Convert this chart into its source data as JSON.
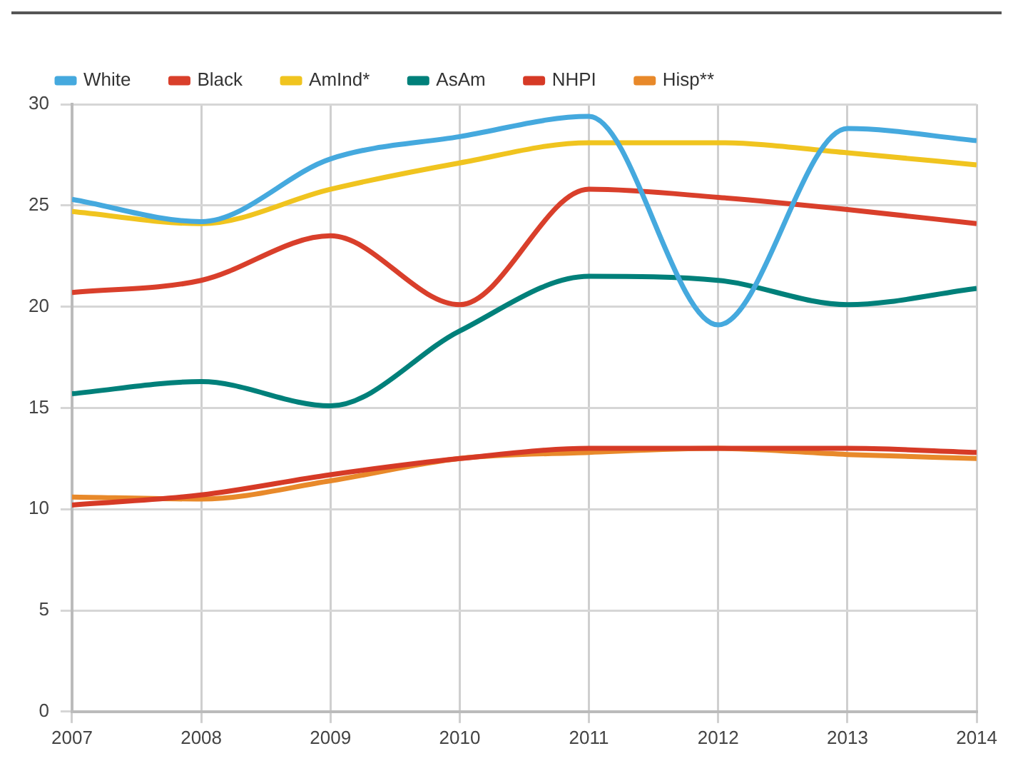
{
  "chart_data": {
    "type": "line",
    "x": [
      2007,
      2008,
      2009,
      2010,
      2011,
      2012,
      2013,
      2014
    ],
    "series": [
      {
        "name": "White",
        "color": "#45a9de",
        "values": [
          25.3,
          24.2,
          27.3,
          28.4,
          29.4,
          19.1,
          28.8,
          28.2
        ]
      },
      {
        "name": "Black",
        "color": "#d93f2b",
        "values": [
          20.7,
          21.3,
          23.5,
          20.1,
          25.8,
          25.4,
          24.8,
          24.1
        ]
      },
      {
        "name": "AmInd*",
        "color": "#f0c41f",
        "values": [
          24.7,
          24.1,
          25.8,
          27.1,
          28.1,
          28.1,
          27.6,
          27.0
        ]
      },
      {
        "name": "AsAm",
        "color": "#00807a",
        "values": [
          15.7,
          16.3,
          15.1,
          18.8,
          21.5,
          21.3,
          20.1,
          20.9
        ]
      },
      {
        "name": "NHPI",
        "color": "#d63a26",
        "values": [
          10.2,
          10.7,
          11.7,
          12.5,
          13.0,
          13.0,
          13.0,
          12.8
        ]
      },
      {
        "name": "Hisp**",
        "color": "#e8892a",
        "values": [
          10.6,
          10.5,
          11.4,
          12.5,
          12.8,
          13.0,
          12.7,
          12.5
        ]
      }
    ],
    "xlim": [
      2007,
      2014
    ],
    "xticks": [
      2007,
      2008,
      2009,
      2010,
      2011,
      2012,
      2013,
      2014
    ],
    "ylim": [
      0,
      30
    ],
    "yticks": [
      0,
      5,
      10,
      15,
      20,
      25,
      30
    ],
    "grid": true,
    "legend": "top left",
    "marker": "none",
    "line_style": "solid"
  }
}
